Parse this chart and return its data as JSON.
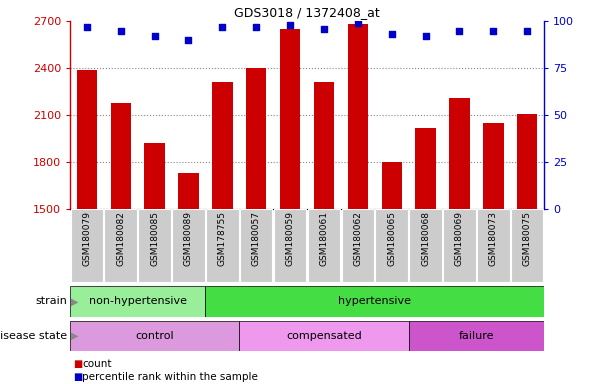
{
  "title": "GDS3018 / 1372408_at",
  "samples": [
    "GSM180079",
    "GSM180082",
    "GSM180085",
    "GSM180089",
    "GSM178755",
    "GSM180057",
    "GSM180059",
    "GSM180061",
    "GSM180062",
    "GSM180065",
    "GSM180068",
    "GSM180069",
    "GSM180073",
    "GSM180075"
  ],
  "counts": [
    2390,
    2175,
    1920,
    1730,
    2310,
    2400,
    2650,
    2310,
    2680,
    1800,
    2020,
    2210,
    2050,
    2110
  ],
  "percentile_ranks": [
    97,
    95,
    92,
    90,
    97,
    97,
    98,
    96,
    99,
    93,
    92,
    95,
    95,
    95
  ],
  "ylim_left": [
    1500,
    2700
  ],
  "ylim_right": [
    0,
    100
  ],
  "yticks_left": [
    1500,
    1800,
    2100,
    2400,
    2700
  ],
  "yticks_right": [
    0,
    25,
    50,
    75,
    100
  ],
  "bar_color": "#cc0000",
  "dot_color": "#0000cc",
  "strain_groups": [
    {
      "label": "non-hypertensive",
      "start": 0,
      "end": 4,
      "color": "#99ee99"
    },
    {
      "label": "hypertensive",
      "start": 4,
      "end": 14,
      "color": "#44dd44"
    }
  ],
  "disease_groups": [
    {
      "label": "control",
      "start": 0,
      "end": 5,
      "color": "#dd99dd"
    },
    {
      "label": "compensated",
      "start": 5,
      "end": 10,
      "color": "#ee99ee"
    },
    {
      "label": "failure",
      "start": 10,
      "end": 14,
      "color": "#cc55cc"
    }
  ],
  "legend_count_label": "count",
  "legend_percentile_label": "percentile rank within the sample",
  "strain_label": "strain",
  "disease_label": "disease state",
  "grid_color": "#888888",
  "tick_bg_color": "#cccccc"
}
